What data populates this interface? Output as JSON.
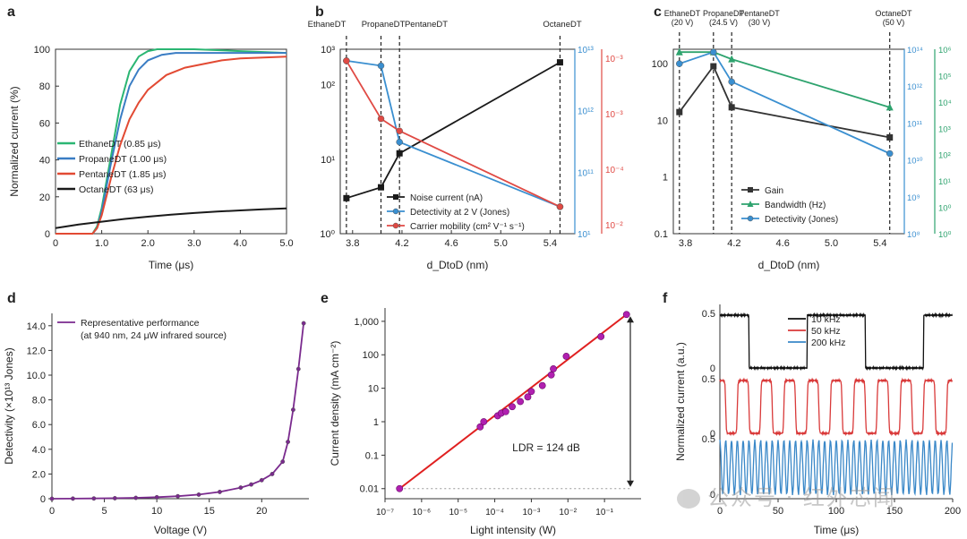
{
  "watermark": "公众号 · 红外芯闻",
  "chart_data": [
    {
      "panel": "a",
      "type": "line",
      "xlabel": "Time (μs)",
      "ylabel": "Normalized current (%)",
      "xlim": [
        0,
        5
      ],
      "ylim": [
        0,
        100
      ],
      "xticks": [
        "0",
        "1.0",
        "2.0",
        "3.0",
        "4.0",
        "5.0"
      ],
      "yticks": [
        "0",
        "20",
        "40",
        "60",
        "80",
        "100"
      ],
      "legend_position": "middle-left",
      "series": [
        {
          "name": "EthaneDT (0.85 μs)",
          "color": "#2bb673",
          "x": [
            0,
            0.8,
            0.9,
            1.0,
            1.2,
            1.4,
            1.6,
            1.8,
            2.0,
            2.2,
            2.5,
            3.0,
            4.0,
            5.0
          ],
          "y": [
            0,
            0,
            4,
            14,
            42,
            70,
            88,
            96,
            99,
            100,
            100,
            100,
            99,
            98
          ]
        },
        {
          "name": "PropaneDT (1.00 μs)",
          "color": "#3a7dc4",
          "x": [
            0,
            0.8,
            0.9,
            1.0,
            1.2,
            1.4,
            1.6,
            1.8,
            2.0,
            2.3,
            2.6,
            3.0,
            4.0,
            5.0
          ],
          "y": [
            0,
            0,
            3,
            12,
            38,
            62,
            80,
            89,
            94,
            97,
            98,
            98,
            98,
            98
          ]
        },
        {
          "name": "PentaneDT (1.85 μs)",
          "color": "#e24a33",
          "x": [
            0,
            0.8,
            0.9,
            1.0,
            1.2,
            1.4,
            1.6,
            1.8,
            2.0,
            2.4,
            2.8,
            3.2,
            3.6,
            4.0,
            5.0
          ],
          "y": [
            0,
            0,
            3,
            10,
            30,
            48,
            62,
            71,
            78,
            86,
            90,
            92,
            94,
            95,
            96
          ]
        },
        {
          "name": "OctaneDT (63 μs)",
          "color": "#1a1a1a",
          "x": [
            0,
            0.5,
            1.0,
            1.5,
            2.0,
            2.5,
            3.0,
            3.5,
            4.0,
            4.5,
            5.0
          ],
          "y": [
            3,
            5,
            6.5,
            8,
            9.2,
            10.3,
            11.2,
            12,
            12.6,
            13.2,
            13.7
          ]
        }
      ]
    },
    {
      "panel": "b",
      "type": "line",
      "xlabel": "d_DtoD (nm)",
      "ylabel_left": "",
      "xlim": [
        3.7,
        5.6
      ],
      "ylim_left": [
        1,
        100
      ],
      "xticks": [
        "3.8",
        "4.2",
        "4.6",
        "5.0",
        "5.4"
      ],
      "yticks_left": [
        "10⁰",
        "10¹",
        "10²",
        "10³"
      ],
      "yticks_right_blue": [
        "10¹",
        "10¹¹",
        "10¹²",
        "10¹³"
      ],
      "yticks_right_red": [
        "10⁻²",
        "10⁻⁴",
        "10⁻³",
        "10⁻³"
      ],
      "top_labels": [
        "EthaneDT",
        "PropaneDT",
        "PentaneDT",
        "OctaneDT"
      ],
      "legend_position": "bottom-center",
      "series": [
        {
          "name": "Noise current (nA)",
          "color": "#1a1a1a",
          "marker": "square",
          "x": [
            3.75,
            4.03,
            4.18,
            5.48
          ],
          "y": [
            3,
            4.2,
            12,
            200
          ]
        },
        {
          "name": "Detectivity at 2 V (Jones)",
          "color": "#3a8fd0",
          "marker": "circle",
          "x": [
            3.75,
            4.03,
            4.18,
            5.48
          ],
          "y": [
            210,
            180,
            17,
            2.3
          ]
        },
        {
          "name": "Carrier mobility (cm² V⁻¹ s⁻¹)",
          "color": "#e04a44",
          "marker": "circle",
          "x": [
            3.75,
            4.03,
            4.18,
            5.48
          ],
          "y": [
            210,
            35,
            24,
            2.3
          ]
        }
      ]
    },
    {
      "panel": "c",
      "type": "line",
      "xlabel": "d_DtoD (nm)",
      "xlim": [
        3.7,
        5.6
      ],
      "ylim_left": [
        0.1,
        100
      ],
      "xticks": [
        "3.8",
        "4.2",
        "4.6",
        "5.0",
        "5.4"
      ],
      "yticks_left": [
        "0.1",
        "1",
        "10",
        "100"
      ],
      "yticks_right_blue": [
        "10⁸",
        "10⁹",
        "10¹⁰",
        "10¹¹",
        "10¹²",
        "10¹⁴"
      ],
      "yticks_right_green": [
        "10⁰",
        "10⁰",
        "10¹",
        "10²",
        "10³",
        "10⁴",
        "10⁵",
        "10⁶"
      ],
      "top_labels": [
        "EthaneDT",
        "(20 V)",
        "PropaneDT",
        "(24.5 V)",
        "PentaneDT",
        "(30 V)",
        "OctaneDT",
        "(50 V)"
      ],
      "legend_position": "bottom-left",
      "series": [
        {
          "name": "Gain",
          "color": "#333333",
          "marker": "square",
          "x": [
            3.75,
            4.03,
            4.18,
            5.48
          ],
          "y": [
            14,
            90,
            17,
            5
          ]
        },
        {
          "name": "Bandwidth (Hz)",
          "color": "#2ea36e",
          "marker": "triangle",
          "x": [
            3.75,
            4.03,
            4.18,
            5.48
          ],
          "y": [
            160,
            160,
            120,
            17
          ]
        },
        {
          "name": "Detectivity (Jones)",
          "color": "#3a8fd0",
          "marker": "circle",
          "x": [
            3.75,
            4.03,
            4.18,
            5.48
          ],
          "y": [
            100,
            160,
            48,
            2.6
          ]
        }
      ]
    },
    {
      "panel": "d",
      "type": "line",
      "xlabel": "Voltage (V)",
      "ylabel": "Detectivity (×10¹³ Jones)",
      "xlim": [
        0,
        25
      ],
      "ylim": [
        0,
        15
      ],
      "xticks": [
        "0",
        "5",
        "10",
        "15",
        "20"
      ],
      "yticks": [
        "0",
        "2.0",
        "4.0",
        "6.0",
        "8.0",
        "10.0",
        "12.0",
        "14.0"
      ],
      "legend_position": "top-left",
      "series": [
        {
          "name": "Representative performance",
          "name_line2": "(at 940 nm, 24 μW infrared source)",
          "color": "#7a2a8e",
          "x": [
            0,
            2,
            4,
            6,
            8,
            10,
            12,
            14,
            16,
            18,
            19,
            20,
            21,
            22,
            22.5,
            23,
            23.5,
            24
          ],
          "y": [
            0,
            0.01,
            0.02,
            0.04,
            0.07,
            0.12,
            0.2,
            0.33,
            0.55,
            0.9,
            1.15,
            1.5,
            2.0,
            3.0,
            4.6,
            7.2,
            10.5,
            14.2
          ]
        }
      ]
    },
    {
      "panel": "e",
      "type": "scatter",
      "xlabel": "Light intensity (W)",
      "ylabel": "Current density (mA cm⁻²)",
      "xtick_labels": [
        "10⁻⁷",
        "10⁻⁶",
        "10⁻⁵",
        "10⁻⁴",
        "10⁻³",
        "10⁻²",
        "10⁻¹"
      ],
      "ytick_labels": [
        "0.01",
        "0.1",
        "1",
        "10",
        "100",
        "1,000"
      ],
      "annotation": "LDR = 124 dB",
      "fit_line": {
        "color": "#e02020",
        "x": [
          2.5e-07,
          0.4
        ],
        "y": [
          0.01,
          1600
        ]
      },
      "points": {
        "color": "#b020b0",
        "x": [
          2.5e-07,
          4e-05,
          5e-05,
          0.00012,
          0.00015,
          0.0002,
          0.0003,
          0.0005,
          0.0008,
          0.001,
          0.002,
          0.0035,
          0.004,
          0.009,
          0.08,
          0.4
        ],
        "y": [
          0.01,
          0.7,
          1.0,
          1.5,
          1.8,
          2.0,
          2.8,
          4.0,
          5.5,
          8,
          12,
          25,
          38,
          90,
          350,
          1600
        ]
      }
    },
    {
      "panel": "f",
      "type": "line",
      "xlabel": "Time (μs)",
      "ylabel": "Normalized current (a.u.)",
      "xlim": [
        0,
        200
      ],
      "xticks": [
        "0",
        "50",
        "100",
        "150",
        "200"
      ],
      "yticks_each": [
        "0",
        "0.5"
      ],
      "legend_position": "top-right",
      "series": [
        {
          "name": "10 kHz",
          "color": "#111111",
          "frequency_khz": 10
        },
        {
          "name": "50 kHz",
          "color": "#d93a3a",
          "frequency_khz": 50
        },
        {
          "name": "200 kHz",
          "color": "#3a88c8",
          "frequency_khz": 200
        }
      ]
    }
  ],
  "panel_letters": [
    "a",
    "b",
    "c",
    "d",
    "e",
    "f"
  ]
}
